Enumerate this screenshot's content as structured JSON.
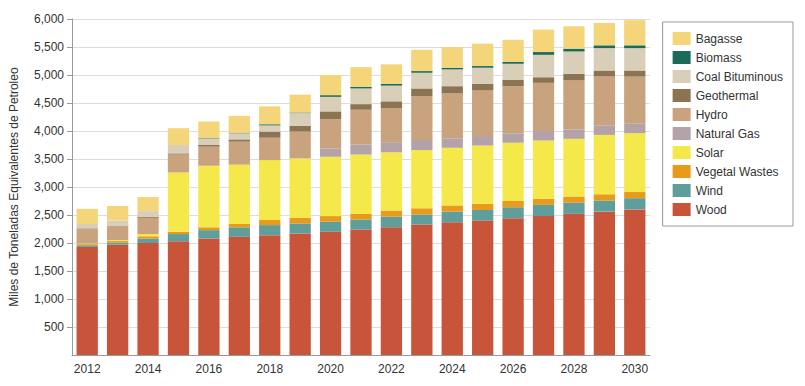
{
  "chart_data": {
    "type": "bar",
    "stacked": true,
    "grid": true,
    "legend": "right",
    "y_label": "Miles de Toneladas Equivalentes de Petroleo",
    "categories": [
      "2012",
      null,
      "2014",
      null,
      "2016",
      null,
      "2018",
      null,
      "2020",
      null,
      "2022",
      null,
      "2024",
      null,
      "2026",
      null,
      "2028",
      null,
      "2030"
    ],
    "ylim": [
      0,
      6000
    ],
    "yticks": [
      500,
      {
        "value": 1000,
        "label": "1,000"
      },
      {
        "value": 1500,
        "label": "1,500"
      },
      {
        "value": 2000,
        "label": "2,000"
      },
      {
        "value": 2500,
        "label": "2,500"
      },
      {
        "value": 3000,
        "label": "3,000"
      },
      {
        "value": 3500,
        "label": "3,500"
      },
      {
        "value": 4000,
        "label": "4,000"
      },
      {
        "value": 4500,
        "label": "4,500"
      },
      {
        "value": 5000,
        "label": "5,000"
      },
      {
        "value": 5500,
        "label": "5,500"
      },
      {
        "value": 6000,
        "label": "6,000"
      }
    ],
    "series": [
      {
        "name": "Wood",
        "color": "#c8553a",
        "values": [
          1930,
          1970,
          2000,
          2030,
          2080,
          2110,
          2140,
          2170,
          2200,
          2240,
          2280,
          2330,
          2370,
          2400,
          2440,
          2480,
          2520,
          2560,
          2600
        ]
      },
      {
        "name": "Wind",
        "color": "#5f9e9a",
        "values": [
          30,
          40,
          80,
          130,
          150,
          170,
          180,
          180,
          180,
          180,
          190,
          180,
          190,
          190,
          200,
          200,
          200,
          200,
          200
        ]
      },
      {
        "name": "Vegetal Wastes",
        "color": "#e89a1a",
        "values": [
          20,
          25,
          40,
          40,
          50,
          60,
          90,
          100,
          100,
          100,
          110,
          110,
          110,
          110,
          110,
          110,
          110,
          110,
          110
        ]
      },
      {
        "name": "Solar",
        "color": "#f5e84a",
        "values": [
          10,
          15,
          40,
          1060,
          1100,
          1060,
          1070,
          1060,
          1060,
          1060,
          1040,
          1040,
          1030,
          1040,
          1040,
          1040,
          1030,
          1060,
          1050
        ]
      },
      {
        "name": "Natural Gas",
        "color": "#b3a3a8",
        "values": [
          0,
          0,
          0,
          0,
          0,
          0,
          0,
          0,
          150,
          180,
          180,
          180,
          170,
          170,
          170,
          170,
          170,
          170,
          170
        ]
      },
      {
        "name": "Hydro",
        "color": "#c9a27e",
        "values": [
          260,
          250,
          290,
          320,
          340,
          410,
          400,
          480,
          520,
          620,
          610,
          780,
          800,
          820,
          840,
          860,
          880,
          880,
          840
        ]
      },
      {
        "name": "Geothermal",
        "color": "#8c7452",
        "values": [
          10,
          10,
          20,
          20,
          30,
          40,
          110,
          100,
          140,
          100,
          120,
          140,
          130,
          110,
          110,
          100,
          110,
          100,
          110
        ]
      },
      {
        "name": "Coal Bituminous",
        "color": "#d9cfb8",
        "values": [
          80,
          90,
          100,
          150,
          110,
          110,
          110,
          230,
          260,
          280,
          280,
          280,
          300,
          290,
          290,
          400,
          400,
          400,
          400
        ]
      },
      {
        "name": "Biomass",
        "color": "#1a6b5a",
        "values": [
          0,
          0,
          0,
          0,
          10,
          10,
          20,
          10,
          30,
          30,
          30,
          30,
          30,
          30,
          30,
          50,
          50,
          50,
          50
        ]
      },
      {
        "name": "Bagasse",
        "color": "#f5d57a",
        "values": [
          270,
          260,
          250,
          300,
          300,
          300,
          320,
          320,
          360,
          350,
          350,
          380,
          370,
          400,
          400,
          400,
          400,
          400,
          450
        ]
      }
    ]
  }
}
